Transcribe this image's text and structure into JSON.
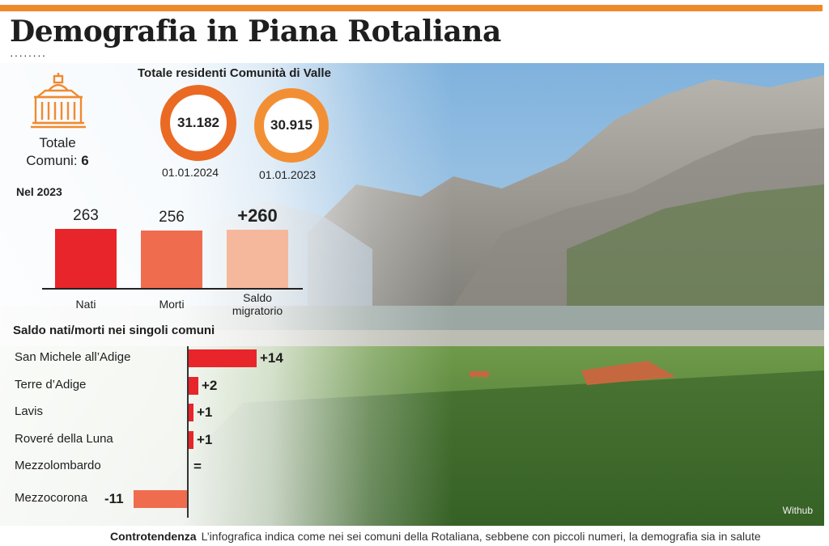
{
  "headline": "Demografia in Piana Rotaliana",
  "colors": {
    "accent": "#ef8a2a",
    "nati": "#e8252a",
    "morti": "#f06c4f",
    "saldo": "#f6b89c",
    "comune_bar_pos": "#e8252a",
    "comune_bar_neg": "#f06c4f"
  },
  "comuni_box": {
    "label": "Totale",
    "label2": "Comuni:",
    "value": "6",
    "icon": "town-hall-icon"
  },
  "residents": {
    "title": "Totale residenti Comunità di Valle",
    "items": [
      {
        "value": "31.182",
        "date": "01.01.2024"
      },
      {
        "value": "30.915",
        "date": "01.01.2023"
      }
    ]
  },
  "chart_data": [
    {
      "type": "bar",
      "title": "Nel 2023",
      "categories": [
        "Nati",
        "Morti",
        "Saldo migratorio"
      ],
      "values": [
        263,
        256,
        260
      ],
      "value_labels": [
        "263",
        "256",
        "+260"
      ],
      "ylim": [
        0,
        300
      ]
    },
    {
      "type": "bar",
      "orientation": "horizontal",
      "title": "Saldo nati/morti nei singoli comuni",
      "categories": [
        "San Michele all’Adige",
        "Terre d’Adige",
        "Lavis",
        "Roveré della Luna",
        "Mezzolombardo",
        "Mezzocorona"
      ],
      "values": [
        14,
        2,
        1,
        1,
        0,
        -11
      ],
      "value_labels": [
        "+14",
        "+2",
        "+1",
        "+1",
        "=",
        "-11"
      ]
    }
  ],
  "photo_credit": "Withub",
  "footer": {
    "lead": "Controtendenza",
    "text": "L’infografica indica come nei sei comuni della Rotaliana, sebbene con piccoli numeri, la demografia sia in salute"
  }
}
